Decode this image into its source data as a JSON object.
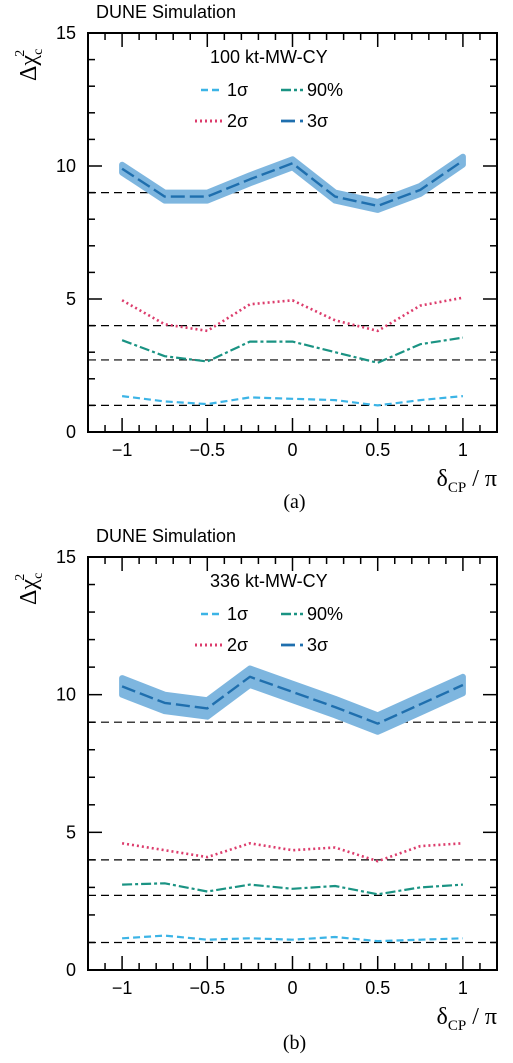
{
  "chart_data": [
    {
      "type": "line",
      "panel_label": "(a)",
      "title": "DUNE Simulation",
      "exposure": "100 kt-MW-CY",
      "xlabel_main": "δ",
      "xlabel_sub": "CP",
      "xlabel_suffix": " / π",
      "ylabel_main": "Δχ",
      "ylabel_sub": "c",
      "ylabel_sup": "2",
      "xlim": [
        -1.2,
        1.2
      ],
      "ylim": [
        0,
        15
      ],
      "xticks": [
        -1,
        -0.5,
        0,
        0.5,
        1
      ],
      "xtick_labels": [
        "−1",
        "−0.5",
        "0",
        "0.5",
        "1"
      ],
      "yticks": [
        0,
        5,
        10,
        15
      ],
      "ytick_labels": [
        "0",
        "5",
        "10",
        "15"
      ],
      "reference_lines": [
        1,
        2.71,
        4,
        9
      ],
      "x": [
        -1,
        -0.75,
        -0.5,
        -0.25,
        0,
        0.25,
        0.5,
        0.75,
        1
      ],
      "series": [
        {
          "name": "1σ",
          "style": "1sigma",
          "color": "#3cb4e6",
          "values": [
            1.35,
            1.15,
            1.05,
            1.3,
            1.25,
            1.2,
            1.0,
            1.2,
            1.35
          ]
        },
        {
          "name": "90%",
          "style": "90",
          "color": "#1a9383",
          "values": [
            3.45,
            2.85,
            2.65,
            3.4,
            3.4,
            3.0,
            2.6,
            3.3,
            3.55
          ]
        },
        {
          "name": "2σ",
          "style": "2sigma",
          "color": "#dc3c6c",
          "values": [
            4.95,
            4.05,
            3.8,
            4.8,
            4.95,
            4.2,
            3.8,
            4.75,
            5.05
          ]
        },
        {
          "name": "3σ",
          "style": "3sigma",
          "color": "#1f6fae",
          "band_color": "#7eb6df",
          "band_width": 0.15,
          "values": [
            9.9,
            8.85,
            8.85,
            9.5,
            10.1,
            8.85,
            8.5,
            9.1,
            10.2
          ]
        }
      ]
    },
    {
      "type": "line",
      "panel_label": "(b)",
      "title": "DUNE Simulation",
      "exposure": "336 kt-MW-CY",
      "xlabel_main": "δ",
      "xlabel_sub": "CP",
      "xlabel_suffix": " / π",
      "ylabel_main": "Δχ",
      "ylabel_sub": "c",
      "ylabel_sup": "2",
      "xlim": [
        -1.2,
        1.2
      ],
      "ylim": [
        0,
        15
      ],
      "xticks": [
        -1,
        -0.5,
        0,
        0.5,
        1
      ],
      "xtick_labels": [
        "−1",
        "−0.5",
        "0",
        "0.5",
        "1"
      ],
      "yticks": [
        0,
        5,
        10,
        15
      ],
      "ytick_labels": [
        "0",
        "5",
        "10",
        "15"
      ],
      "reference_lines": [
        1,
        2.71,
        4,
        9
      ],
      "x": [
        -1,
        -0.75,
        -0.5,
        -0.25,
        0,
        0.25,
        0.5,
        0.75,
        1
      ],
      "series": [
        {
          "name": "1σ",
          "style": "1sigma",
          "color": "#3cb4e6",
          "values": [
            1.15,
            1.25,
            1.1,
            1.15,
            1.1,
            1.2,
            1.05,
            1.1,
            1.15
          ]
        },
        {
          "name": "90%",
          "style": "90",
          "color": "#1a9383",
          "values": [
            3.1,
            3.15,
            2.85,
            3.1,
            2.95,
            3.05,
            2.75,
            3.0,
            3.1
          ]
        },
        {
          "name": "2σ",
          "style": "2sigma",
          "color": "#dc3c6c",
          "values": [
            4.6,
            4.35,
            4.1,
            4.6,
            4.35,
            4.45,
            3.95,
            4.5,
            4.6
          ]
        },
        {
          "name": "3σ",
          "style": "3sigma",
          "color": "#1f6fae",
          "band_color": "#7eb6df",
          "band_width": 0.3,
          "values": [
            10.3,
            9.7,
            9.5,
            10.65,
            10.1,
            9.55,
            8.95,
            9.65,
            10.35
          ]
        }
      ]
    }
  ]
}
